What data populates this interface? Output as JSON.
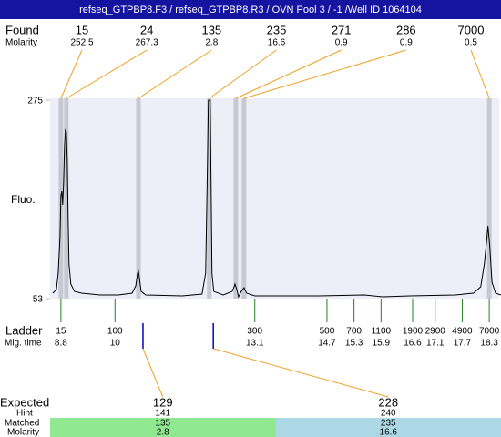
{
  "header": {
    "title": "refseq_GTPBP8.F3 / refseq_GTPBP8.R3 / OVN Pool 3 / -1 /Well ID 1064104"
  },
  "chart_data": {
    "type": "electropherogram",
    "y_label": "Fluo.",
    "ylim": [
      53,
      275
    ],
    "yticks": [
      53,
      275
    ],
    "xlim": [
      8.56,
      18.56
    ],
    "trace": {
      "color": "#000000",
      "x": [
        8.62,
        8.7,
        8.74,
        8.78,
        8.8,
        8.82,
        8.84,
        8.86,
        8.88,
        8.9,
        8.92,
        8.94,
        8.96,
        8.98,
        9.02,
        9.1,
        9.26,
        9.67,
        10.07,
        10.38,
        10.46,
        10.5,
        10.52,
        10.54,
        10.58,
        10.68,
        11.49,
        11.93,
        12.01,
        12.05,
        12.07,
        12.11,
        12.13,
        12.15,
        12.19,
        12.4,
        12.6,
        12.64,
        12.66,
        12.7,
        12.74,
        12.8,
        12.86,
        12.92,
        13.1,
        14.52,
        15.53,
        15.93,
        16.54,
        17.55,
        17.95,
        18.11,
        18.19,
        18.25,
        18.27,
        18.31,
        18.36,
        18.44,
        18.56
      ],
      "values": [
        59.1,
        63.2,
        81.5,
        122.2,
        168.0,
        173.1,
        157.9,
        183.3,
        224.0,
        241.3,
        239.3,
        208.8,
        142.6,
        91.7,
        69.3,
        61.1,
        59.1,
        57.1,
        57.1,
        59.1,
        67.3,
        81.5,
        83.5,
        76.4,
        61.1,
        57.1,
        56.1,
        58.1,
        81.5,
        203.7,
        274.9,
        275,
        183.3,
        81.5,
        61.1,
        57.1,
        61.1,
        66.2,
        69.3,
        63.2,
        55.0,
        61.1,
        65.2,
        59.1,
        56.1,
        56.1,
        57.1,
        55.0,
        56.1,
        57.1,
        59.1,
        66.2,
        91.7,
        122.2,
        134.4,
        112.0,
        71.3,
        59.1,
        57.1
      ]
    },
    "found": {
      "label": "Found",
      "molarity_label": "Molarity",
      "sizes": [
        15,
        24,
        135,
        235,
        271,
        286,
        7000
      ],
      "molarity": [
        252.5,
        267.3,
        2.8,
        16.6,
        0.9,
        0.9,
        0.5
      ],
      "x": [
        8.8,
        8.92,
        10.52,
        12.09,
        12.68,
        12.86,
        18.3
      ]
    },
    "ladder": {
      "label": "Ladder",
      "time_label": "Mig. time",
      "sizes": [
        15,
        100,
        300,
        500,
        700,
        1100,
        1900,
        2900,
        4900,
        7000
      ],
      "x": [
        8.8,
        10,
        13.1,
        14.7,
        15.3,
        15.9,
        16.6,
        17.1,
        17.7,
        18.3
      ]
    },
    "expected": {
      "label": "Expected",
      "hint_label": "Hint",
      "matched_label": "Matched",
      "molarity_label": "Molarity",
      "sizes": [
        129,
        228
      ],
      "x": [
        10.62,
        12.18
      ],
      "hint": [
        141,
        240
      ],
      "matched": [
        135,
        235
      ],
      "molarity": [
        2.8,
        16.6
      ],
      "colors": [
        "#90e890",
        "#acd8e6"
      ]
    }
  }
}
